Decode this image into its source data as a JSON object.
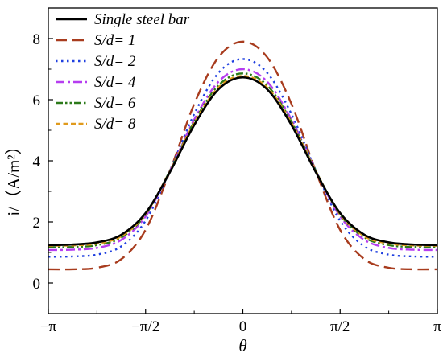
{
  "chart_data": {
    "type": "line",
    "title": "",
    "xlabel": "θ",
    "ylabel": "i/（A/m²）",
    "xlim": [
      -3.14159,
      3.14159
    ],
    "ylim": [
      -1,
      9
    ],
    "x_ticks": [
      {
        "value": -3.14159,
        "label": "−π"
      },
      {
        "value": -1.5708,
        "label": "−π/2"
      },
      {
        "value": 0,
        "label": "0"
      },
      {
        "value": 1.5708,
        "label": "π/2"
      },
      {
        "value": 3.14159,
        "label": "π"
      }
    ],
    "y_ticks": [
      {
        "value": 0,
        "label": "0"
      },
      {
        "value": 2,
        "label": "2"
      },
      {
        "value": 4,
        "label": "4"
      },
      {
        "value": 6,
        "label": "6"
      },
      {
        "value": 8,
        "label": "8"
      }
    ],
    "grid": false,
    "legend_position": "top-left",
    "x": [
      -3.14159,
      -2.7489,
      -2.3562,
      -1.9635,
      -1.5708,
      -1.1781,
      -0.7854,
      -0.3927,
      0,
      0.3927,
      0.7854,
      1.1781,
      1.5708,
      1.9635,
      2.3562,
      2.7489,
      3.14159
    ],
    "series": [
      {
        "name": "Single steel bar",
        "color": "#000000",
        "dash": "solid",
        "values": [
          1.24,
          1.26,
          1.33,
          1.58,
          2.29,
          3.63,
          5.17,
          6.34,
          6.73,
          6.34,
          5.17,
          3.63,
          2.29,
          1.58,
          1.33,
          1.26,
          1.24
        ]
      },
      {
        "name": "S/d= 1",
        "color": "#a83c1e",
        "dash": "long-dash",
        "values": [
          0.45,
          0.45,
          0.5,
          0.78,
          1.74,
          3.66,
          5.86,
          7.39,
          7.9,
          7.39,
          5.86,
          3.66,
          1.74,
          0.78,
          0.5,
          0.45,
          0.45
        ]
      },
      {
        "name": "S/d= 2",
        "color": "#1f3fe0",
        "dash": "dot",
        "values": [
          0.86,
          0.87,
          0.93,
          1.2,
          2.04,
          3.68,
          5.53,
          6.88,
          7.33,
          6.88,
          5.53,
          3.68,
          2.04,
          1.2,
          0.93,
          0.87,
          0.86
        ]
      },
      {
        "name": "S/d= 4",
        "color": "#b63df0",
        "dash": "dash-dot",
        "values": [
          1.08,
          1.09,
          1.15,
          1.41,
          2.18,
          3.67,
          5.35,
          6.59,
          7.0,
          6.59,
          5.35,
          3.67,
          2.18,
          1.41,
          1.15,
          1.09,
          1.08
        ]
      },
      {
        "name": "S/d= 6",
        "color": "#2c7a1a",
        "dash": "dash-dot-dot",
        "values": [
          1.17,
          1.18,
          1.24,
          1.49,
          2.24,
          3.67,
          5.28,
          6.47,
          6.86,
          6.47,
          5.28,
          3.67,
          2.24,
          1.49,
          1.24,
          1.18,
          1.17
        ]
      },
      {
        "name": "S/d= 8",
        "color": "#e09a1c",
        "dash": "short-dash",
        "values": [
          1.22,
          1.23,
          1.29,
          1.53,
          2.26,
          3.66,
          5.24,
          6.4,
          6.78,
          6.4,
          5.24,
          3.66,
          2.26,
          1.53,
          1.29,
          1.23,
          1.22
        ]
      }
    ]
  }
}
